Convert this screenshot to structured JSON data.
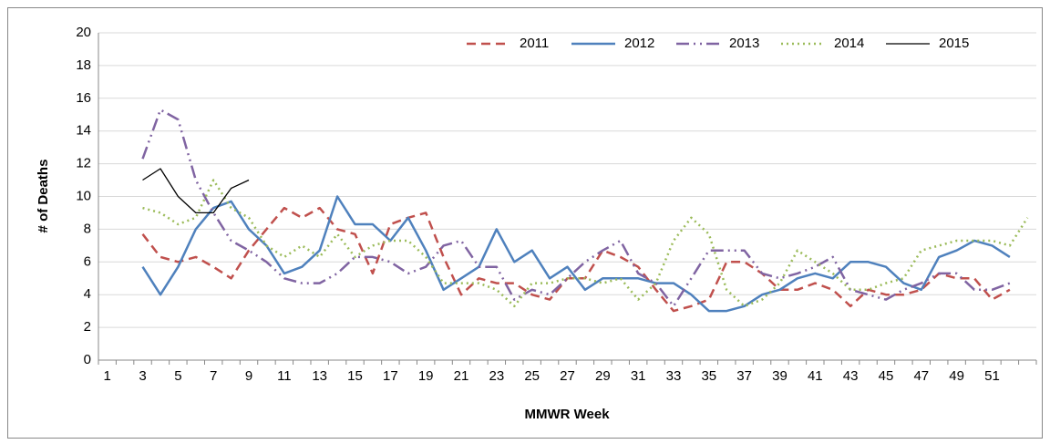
{
  "chart_data": {
    "type": "line",
    "xlabel": "MMWR Week",
    "ylabel": "# of Deaths",
    "categories": [
      "1",
      null,
      "3",
      null,
      "5",
      null,
      "7",
      null,
      "9",
      null,
      "11",
      null,
      "13",
      null,
      "15",
      null,
      "17",
      null,
      "19",
      null,
      "21",
      null,
      "23",
      null,
      "25",
      null,
      "27",
      null,
      "29",
      null,
      "31",
      null,
      "33",
      null,
      "35",
      null,
      "37",
      null,
      "39",
      null,
      "41",
      null,
      "43",
      null,
      "45",
      null,
      "47",
      null,
      "49",
      null,
      "51",
      null,
      null
    ],
    "ylim": [
      0,
      20
    ],
    "yticks": [
      0,
      2,
      4,
      6,
      8,
      10,
      12,
      14,
      16,
      18,
      20
    ],
    "grid": true,
    "legend": "top-right",
    "series": [
      {
        "name": "2011",
        "color": "#c0504d",
        "dash": "dashed",
        "values": [
          null,
          null,
          7.7,
          6.3,
          6.0,
          6.3,
          5.7,
          5.0,
          6.7,
          8.0,
          9.3,
          8.7,
          9.3,
          8.0,
          7.7,
          5.3,
          8.3,
          8.7,
          9.0,
          6.3,
          4.0,
          5.0,
          4.7,
          4.7,
          4.0,
          3.7,
          5.0,
          5.0,
          6.7,
          6.3,
          5.7,
          4.3,
          3.0,
          3.3,
          3.7,
          6.0,
          6.0,
          5.3,
          4.3,
          4.3,
          4.7,
          4.3,
          3.3,
          4.3,
          4.0,
          4.0,
          4.3,
          5.3,
          5.0,
          5.0,
          3.7,
          4.3,
          null
        ]
      },
      {
        "name": "2012",
        "color": "#4f81bd",
        "dash": "solid",
        "values": [
          null,
          null,
          5.7,
          4.0,
          5.7,
          8.0,
          9.3,
          9.7,
          8.0,
          7.0,
          5.3,
          5.7,
          6.7,
          10.0,
          8.3,
          8.3,
          7.3,
          8.7,
          6.7,
          4.3,
          5.0,
          5.7,
          8.0,
          6.0,
          6.7,
          5.0,
          5.7,
          4.3,
          5.0,
          5.0,
          5.0,
          4.7,
          4.7,
          4.0,
          3.0,
          3.0,
          3.3,
          4.0,
          4.3,
          5.0,
          5.3,
          5.0,
          6.0,
          6.0,
          5.7,
          4.7,
          4.3,
          6.3,
          6.7,
          7.3,
          7.0,
          6.3,
          null
        ]
      },
      {
        "name": "2013",
        "color": "#8064a2",
        "dash": "dash-dot-dot",
        "values": [
          null,
          null,
          12.3,
          15.3,
          14.7,
          11.0,
          9.0,
          7.3,
          6.7,
          6.0,
          5.0,
          4.7,
          4.7,
          5.3,
          6.3,
          6.3,
          6.0,
          5.3,
          5.7,
          7.0,
          7.3,
          5.7,
          5.7,
          3.7,
          4.3,
          4.0,
          5.0,
          6.0,
          6.7,
          7.3,
          5.3,
          4.7,
          3.3,
          5.0,
          6.7,
          6.7,
          6.7,
          5.3,
          5.0,
          5.3,
          5.7,
          6.3,
          4.3,
          4.0,
          3.7,
          4.3,
          4.7,
          5.3,
          5.3,
          4.3,
          4.3,
          4.7,
          null
        ]
      },
      {
        "name": "2014",
        "color": "#9bbb59",
        "dash": "dotted",
        "values": [
          null,
          null,
          9.3,
          9.0,
          8.3,
          8.7,
          11.0,
          9.3,
          8.7,
          7.0,
          6.3,
          7.0,
          6.3,
          7.7,
          6.3,
          7.0,
          7.3,
          7.3,
          6.3,
          4.7,
          4.7,
          4.7,
          4.3,
          3.3,
          4.7,
          4.7,
          5.0,
          5.0,
          4.7,
          5.0,
          3.7,
          4.7,
          7.3,
          8.7,
          7.7,
          4.3,
          3.3,
          3.7,
          4.7,
          6.7,
          6.0,
          5.3,
          4.3,
          4.3,
          4.7,
          5.0,
          6.7,
          7.0,
          7.3,
          7.3,
          7.3,
          7.0,
          8.7
        ]
      },
      {
        "name": "2015",
        "color": "#000000",
        "dash": "thin",
        "values": [
          null,
          null,
          11.0,
          11.7,
          10.0,
          9.0,
          9.0,
          10.5,
          11.0,
          null,
          null,
          null,
          null,
          null,
          null,
          null,
          null,
          null,
          null,
          null,
          null,
          null,
          null,
          null,
          null,
          null,
          null,
          null,
          null,
          null,
          null,
          null,
          null,
          null,
          null,
          null,
          null,
          null,
          null,
          null,
          null,
          null,
          null,
          null,
          null,
          null,
          null,
          null,
          null,
          null,
          null,
          null,
          null
        ]
      }
    ]
  }
}
